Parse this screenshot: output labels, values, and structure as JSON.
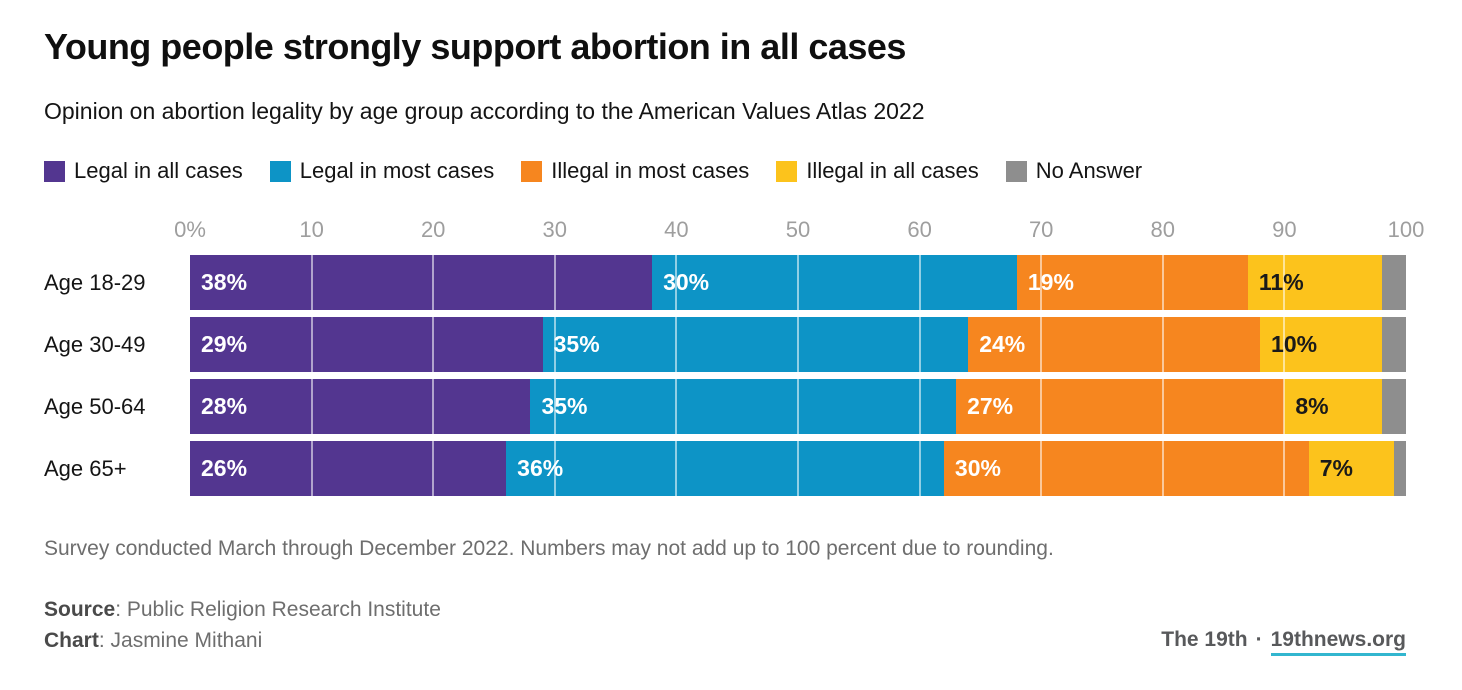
{
  "header": {
    "title": "Young people strongly support abortion in all cases",
    "subtitle": "Opinion on abortion legality by age group according to the American Values Atlas 2022"
  },
  "chart_data": {
    "type": "bar",
    "variant": "stacked-horizontal",
    "title": "Young people strongly support abortion in all cases",
    "categories": [
      "Age 18-29",
      "Age 30-49",
      "Age 50-64",
      "Age 65+"
    ],
    "series": [
      {
        "name": "Legal in all cases",
        "color": "#533690",
        "label_color": "#ffffff",
        "show_labels": true,
        "values": [
          38,
          29,
          28,
          26
        ]
      },
      {
        "name": "Legal in most cases",
        "color": "#0d94c6",
        "label_color": "#ffffff",
        "show_labels": true,
        "values": [
          30,
          35,
          35,
          36
        ]
      },
      {
        "name": "Illegal in most cases",
        "color": "#f6861f",
        "label_color": "#ffffff",
        "show_labels": true,
        "values": [
          19,
          24,
          27,
          30
        ]
      },
      {
        "name": "Illegal in all cases",
        "color": "#fcc31c",
        "label_color": "#1a1a1a",
        "show_labels": true,
        "values": [
          11,
          10,
          8,
          7
        ]
      },
      {
        "name": "No Answer",
        "color": "#8e8e8e",
        "label_color": "#ffffff",
        "show_labels": false,
        "values": [
          2,
          2,
          2,
          1
        ]
      }
    ],
    "value_suffix": "%",
    "xlim": [
      0,
      100
    ],
    "x_ticks": [
      {
        "pos": 0,
        "label": "0%"
      },
      {
        "pos": 10,
        "label": "10"
      },
      {
        "pos": 20,
        "label": "20"
      },
      {
        "pos": 30,
        "label": "30"
      },
      {
        "pos": 40,
        "label": "40"
      },
      {
        "pos": 50,
        "label": "50"
      },
      {
        "pos": 60,
        "label": "60"
      },
      {
        "pos": 70,
        "label": "70"
      },
      {
        "pos": 80,
        "label": "80"
      },
      {
        "pos": 90,
        "label": "90"
      },
      {
        "pos": 100,
        "label": "100"
      }
    ],
    "gridlines": [
      10,
      20,
      30,
      40,
      50,
      60,
      70,
      80,
      90
    ],
    "legend_position": "top",
    "grid": true
  },
  "notes": {
    "footnote": "Survey conducted March through December 2022. Numbers may not add up to 100 percent due to rounding.",
    "source_label": "Source",
    "source_text": ": Public Religion Research Institute",
    "chart_label": "Chart",
    "chart_text": ": Jasmine Mithani"
  },
  "credit": {
    "brand": "The 19th",
    "separator": "·",
    "link": "19thnews.org"
  },
  "colors": {
    "axis_tick": "#9e9e9e",
    "gridline": "rgba(255,255,255,0.55)",
    "link_underline": "#32b6cf"
  }
}
